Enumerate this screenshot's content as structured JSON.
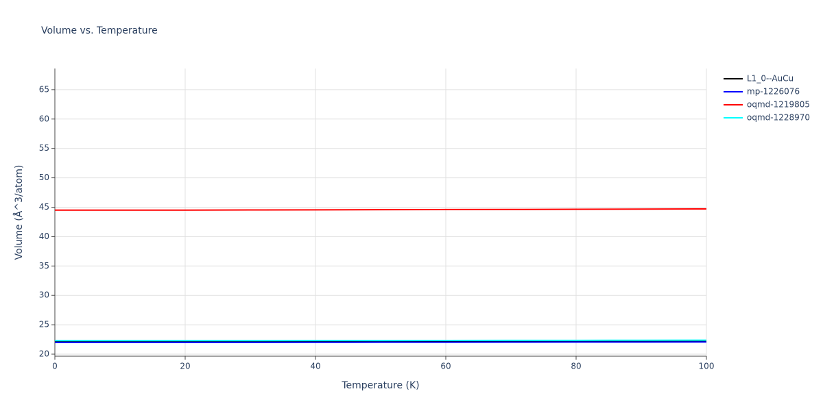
{
  "chart_data": {
    "type": "line",
    "title": "Volume vs. Temperature",
    "x_label": "Temperature (K)",
    "y_label": "Volume (Å^3/atom)",
    "x": [
      0,
      10,
      20,
      30,
      40,
      50,
      60,
      70,
      80,
      90,
      100
    ],
    "series": [
      {
        "name": "L1_0--AuCu",
        "color": "#000000",
        "values": [
          22.1,
          22.1,
          22.1,
          22.1,
          22.11,
          22.12,
          22.13,
          22.14,
          22.15,
          22.16,
          22.17
        ]
      },
      {
        "name": "mp-1226076",
        "color": "#0000ff",
        "values": [
          22.0,
          22.0,
          22.0,
          22.0,
          22.01,
          22.02,
          22.03,
          22.04,
          22.05,
          22.06,
          22.07
        ]
      },
      {
        "name": "oqmd-1219805",
        "color": "#ff0000",
        "values": [
          44.5,
          44.5,
          44.51,
          44.53,
          44.55,
          44.57,
          44.6,
          44.62,
          44.65,
          44.68,
          44.71
        ]
      },
      {
        "name": "oqmd-1228970",
        "color": "#00ffff",
        "values": [
          22.3,
          22.3,
          22.3,
          22.3,
          22.31,
          22.32,
          22.33,
          22.34,
          22.35,
          22.36,
          22.37
        ]
      }
    ],
    "xlim": [
      0,
      100
    ],
    "xticks": [
      0,
      20,
      40,
      60,
      80,
      100
    ],
    "ylim": [
      19.65,
      68.6
    ],
    "yticks": [
      20,
      25,
      30,
      35,
      40,
      45,
      50,
      55,
      60,
      65
    ],
    "grid": true,
    "legend": "right"
  }
}
